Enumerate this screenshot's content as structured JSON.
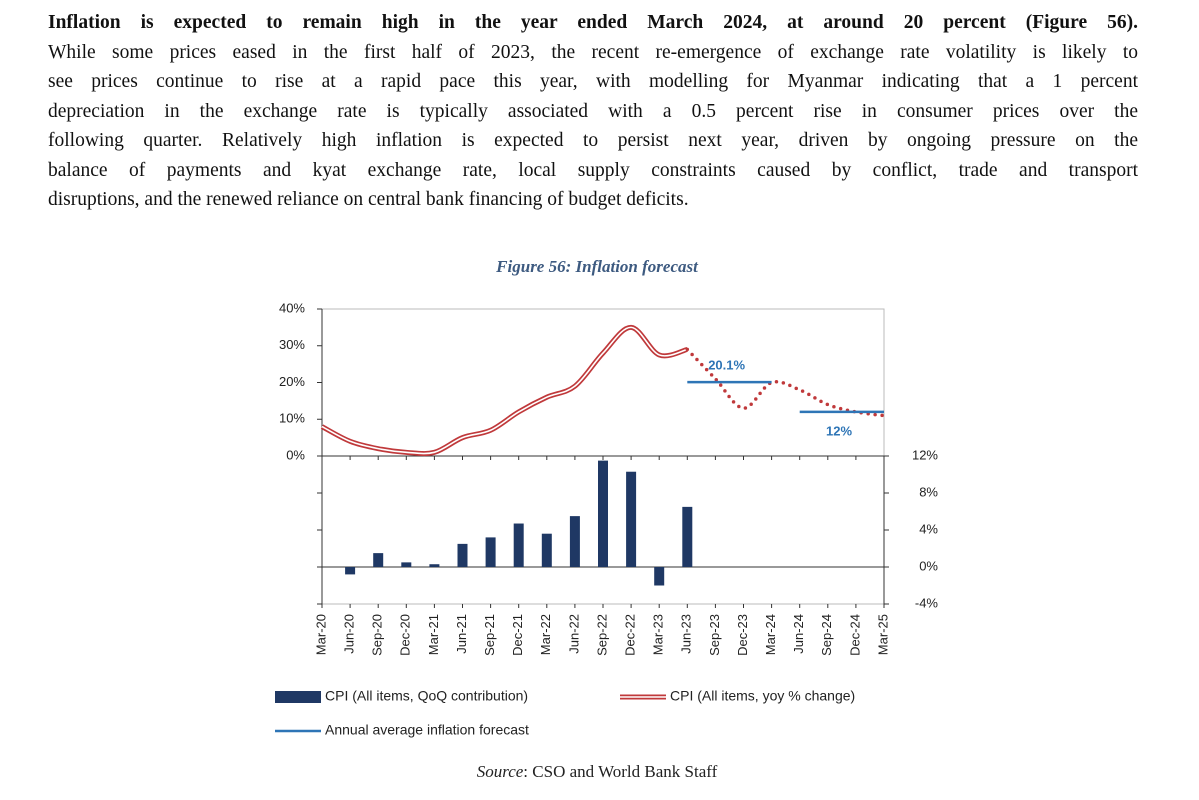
{
  "heading": "Inflation is expected to remain high in the year ended March 2024, at around 20 percent (Figure 56).",
  "body_lines": [
    "While some prices eased in the first half of 2023, the recent re-emergence of exchange rate volatility is likely to",
    "see prices continue to rise at a rapid pace this year, with modelling for Myanmar indicating that a 1 percent",
    "depreciation in the exchange rate is typically associated with a 0.5 percent rise in consumer prices over the",
    "following quarter. Relatively high inflation is expected to persist next year, driven by ongoing pressure on the",
    "balance of payments and kyat exchange rate, local supply constraints caused by conflict, trade and transport",
    "disruptions, and the renewed reliance on central bank financing of budget deficits."
  ],
  "chart_data": {
    "type": "combo",
    "title": "Figure 56: Inflation forecast",
    "categories": [
      "Mar-20",
      "Jun-20",
      "Sep-20",
      "Dec-20",
      "Mar-21",
      "Jun-21",
      "Sep-21",
      "Dec-21",
      "Mar-22",
      "Jun-22",
      "Sep-22",
      "Dec-22",
      "Mar-23",
      "Jun-23",
      "Sep-23",
      "Dec-23",
      "Mar-24",
      "Jun-24",
      "Sep-24",
      "Dec-24",
      "Mar-25"
    ],
    "ylim": [
      0,
      40
    ],
    "yticks": [
      {
        "value": 0,
        "label": "0%"
      },
      {
        "value": 10,
        "label": "10%"
      },
      {
        "value": 20,
        "label": "20%"
      },
      {
        "value": 30,
        "label": "30%"
      },
      {
        "value": 40,
        "label": "40%"
      }
    ],
    "y2lim": [
      -4,
      12
    ],
    "y2ticks": [
      {
        "value": -4,
        "label": "-4%"
      },
      {
        "value": 0,
        "label": "0%"
      },
      {
        "value": 4,
        "label": "4%"
      },
      {
        "value": 8,
        "label": "8%"
      },
      {
        "value": 12,
        "label": "12%"
      }
    ],
    "series": [
      {
        "name": "CPI (All items, QoQ contribution)",
        "type": "bar",
        "axis": "y2",
        "color": "#1f3864",
        "values": [
          null,
          -0.8,
          1.5,
          0.5,
          0.3,
          2.5,
          3.2,
          4.7,
          3.6,
          5.5,
          11.5,
          10.3,
          -2,
          6.5,
          null,
          null,
          null,
          null,
          null,
          null,
          null
        ]
      },
      {
        "name": "CPI (All items, yoy % change)",
        "type": "line",
        "color": "#c0393b",
        "forecast_start": 13,
        "values": [
          8,
          4,
          2,
          1,
          1,
          5,
          7,
          12,
          16,
          19,
          28,
          35,
          27.5,
          29,
          21,
          13,
          20,
          18,
          14,
          12,
          11
        ]
      },
      {
        "name": "Annual average inflation forecast",
        "type": "step",
        "color": "#2e75b6",
        "values": [
          null,
          null,
          null,
          null,
          null,
          null,
          null,
          null,
          null,
          null,
          null,
          null,
          null,
          20.1,
          20.1,
          20.1,
          20.1,
          12,
          12,
          12,
          12
        ],
        "value_labels": [
          null,
          null,
          null,
          null,
          null,
          null,
          null,
          null,
          null,
          null,
          null,
          null,
          null,
          null,
          null,
          "20.1%",
          null,
          null,
          null,
          "12%",
          null
        ]
      }
    ]
  },
  "source_label": "Source",
  "source_text": ": CSO and World Bank Staff"
}
